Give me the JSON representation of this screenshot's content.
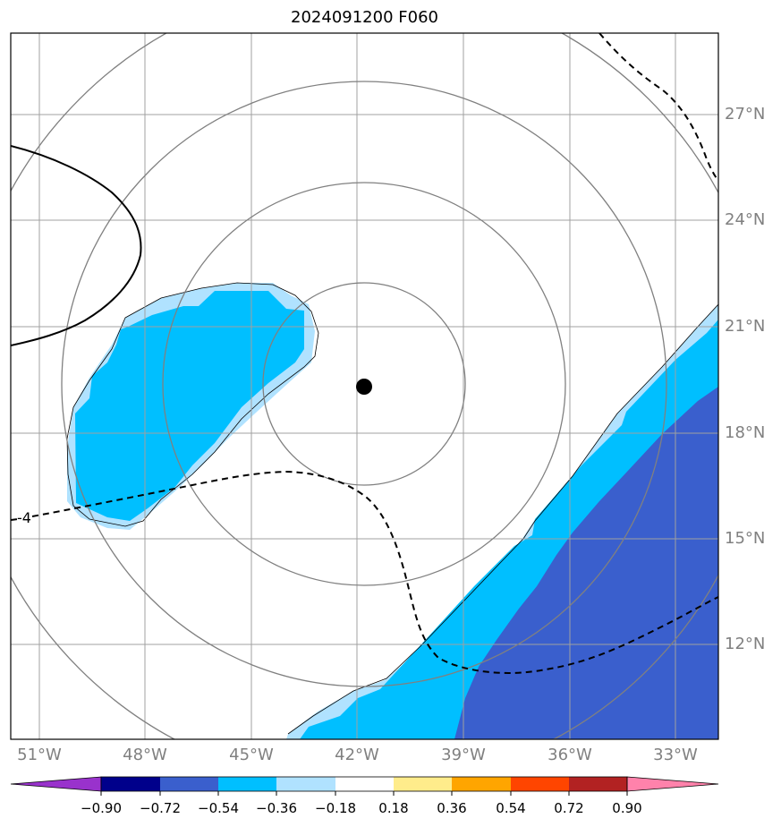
{
  "title": "2024091200 F060",
  "map": {
    "lat_labels": [
      "27°N",
      "24°N",
      "21°N",
      "18°N",
      "15°N",
      "12°N"
    ],
    "lon_labels": [
      "51°W",
      "48°W",
      "45°W",
      "42°W",
      "39°W",
      "36°W",
      "33°W"
    ],
    "contour_label": "-4",
    "center_marker": "storm-center-dot",
    "range_ring_count": 4
  },
  "colorbar": {
    "tick_labels": [
      "−0.90",
      "−0.72",
      "−0.54",
      "−0.36",
      "−0.18",
      "0.18",
      "0.36",
      "0.54",
      "0.72",
      "0.90"
    ],
    "colors": [
      "#9932cc",
      "#00008b",
      "#3a5fcd",
      "#00bfff",
      "#b0e2ff",
      "#ffffff",
      "#ffec8b",
      "#ffa500",
      "#ff4500",
      "#b22222",
      "#ff82ab"
    ],
    "extend": "both"
  },
  "colors": {
    "grid": "#a0a0a0",
    "rings": "#808080",
    "label_gray": "#808080"
  }
}
